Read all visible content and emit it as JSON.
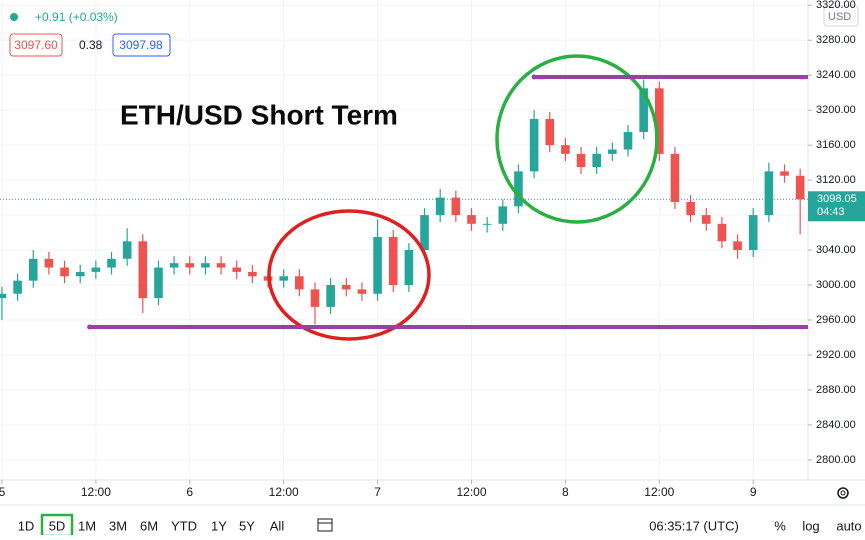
{
  "chart_data": {
    "type": "candlestick",
    "annotation": "ETH/USD Short Term",
    "change": "+0.91 (+0.03%)",
    "bid": "3097.60",
    "spread": "0.38",
    "ask": "3097.98",
    "currency": "USD",
    "last_price": 3098.05,
    "countdown": "04:43",
    "up_color": "#26a69a",
    "down_color": "#ef5350",
    "x": [
      0,
      2,
      4,
      6,
      8,
      10,
      12,
      14,
      16,
      18,
      20,
      22,
      24,
      26,
      28,
      30,
      32,
      34,
      36,
      38,
      40,
      42,
      44,
      46,
      48,
      50,
      52,
      54,
      56,
      58,
      60,
      62,
      64,
      66,
      68,
      70,
      72,
      74,
      76,
      78,
      80,
      82,
      84,
      86,
      88,
      90,
      92,
      94,
      96,
      98,
      100,
      102
    ],
    "open": [
      2985,
      2990,
      3005,
      3030,
      3020,
      3010,
      3015,
      3020,
      3030,
      3050,
      2985,
      3020,
      3025,
      3020,
      3025,
      3020,
      3015,
      3010,
      3005,
      3010,
      2995,
      2975,
      3000,
      2995,
      2990,
      3055,
      3000,
      3040,
      3080,
      3100,
      3080,
      3070,
      3070,
      3090,
      3130,
      3190,
      3160,
      3150,
      3135,
      3150,
      3155,
      3175,
      3225,
      3150,
      3095,
      3080,
      3070,
      3050,
      3040,
      3080,
      3130,
      3125
    ],
    "high": [
      2998,
      3013,
      3040,
      3038,
      3028,
      3023,
      3028,
      3038,
      3065,
      3058,
      3028,
      3033,
      3033,
      3033,
      3033,
      3028,
      3023,
      3018,
      3018,
      3018,
      3003,
      3008,
      3008,
      3003,
      3075,
      3063,
      3048,
      3088,
      3110,
      3108,
      3088,
      3078,
      3098,
      3138,
      3200,
      3198,
      3168,
      3158,
      3158,
      3163,
      3183,
      3235,
      3233,
      3158,
      3103,
      3088,
      3078,
      3058,
      3088,
      3140,
      3138,
      3133
    ],
    "low": [
      2960,
      2982,
      2997,
      3012,
      3002,
      3002,
      3007,
      3012,
      3022,
      2968,
      2977,
      3012,
      3012,
      3012,
      3012,
      3007,
      3002,
      2997,
      2997,
      2987,
      2955,
      2967,
      2987,
      2982,
      2982,
      2992,
      2992,
      3032,
      3072,
      3072,
      3062,
      3060,
      3062,
      3082,
      3122,
      3152,
      3142,
      3127,
      3127,
      3142,
      3147,
      3167,
      3142,
      3087,
      3072,
      3062,
      3042,
      3030,
      3032,
      3072,
      3117,
      3058
    ],
    "close": [
      2990,
      3005,
      3030,
      3020,
      3010,
      3015,
      3020,
      3030,
      3050,
      2985,
      3020,
      3025,
      3020,
      3025,
      3020,
      3015,
      3010,
      3005,
      3010,
      2995,
      2975,
      3000,
      2995,
      2990,
      3055,
      3000,
      3040,
      3080,
      3100,
      3080,
      3070,
      3070,
      3090,
      3130,
      3190,
      3160,
      3150,
      3135,
      3150,
      3155,
      3175,
      3225,
      3150,
      3095,
      3080,
      3070,
      3050,
      3040,
      3080,
      3130,
      3125,
      3098
    ],
    "levels": [
      {
        "value": 3238,
        "from": 68,
        "color": "#9c3ea8"
      },
      {
        "value": 2952,
        "from": 11.2,
        "color": "#9c3ea8"
      }
    ],
    "xlim": [
      -0.25,
      103
    ],
    "xticks": [
      {
        "value": 0,
        "label": "5"
      },
      {
        "value": 12,
        "label": "12:00"
      },
      {
        "value": 24,
        "label": "6"
      },
      {
        "value": 36,
        "label": "12:00"
      },
      {
        "value": 48,
        "label": "7"
      },
      {
        "value": 60,
        "label": "12:00"
      },
      {
        "value": 72,
        "label": "8"
      },
      {
        "value": 84,
        "label": "12:00"
      },
      {
        "value": 96,
        "label": "9"
      }
    ],
    "ylim": [
      2777,
      3326
    ],
    "yticks": [
      {
        "value": 2800,
        "label": "2800.00"
      },
      {
        "value": 2840,
        "label": "2840.00"
      },
      {
        "value": 2880,
        "label": "2880.00"
      },
      {
        "value": 2920,
        "label": "2920.00"
      },
      {
        "value": 2960,
        "label": "2960.00"
      },
      {
        "value": 3000,
        "label": "3000.00"
      },
      {
        "value": 3040,
        "label": "3040.00"
      },
      {
        "value": 3080,
        "label": "3080.00"
      },
      {
        "value": 3120,
        "label": "3120.00"
      },
      {
        "value": 3160,
        "label": "3160.00"
      },
      {
        "value": 3200,
        "label": "3200.00"
      },
      {
        "value": 3240,
        "label": "3240.00"
      },
      {
        "value": 3280,
        "label": "3280.00"
      },
      {
        "value": 3320,
        "label": "3320.00"
      }
    ],
    "grid": true,
    "toolbar": {
      "ranges": [
        "1D",
        "5D",
        "1M",
        "3M",
        "6M",
        "YTD",
        "1Y",
        "5Y",
        "All"
      ],
      "time": "06:35:17 (UTC)",
      "options": [
        "%",
        "log",
        "auto"
      ]
    }
  }
}
